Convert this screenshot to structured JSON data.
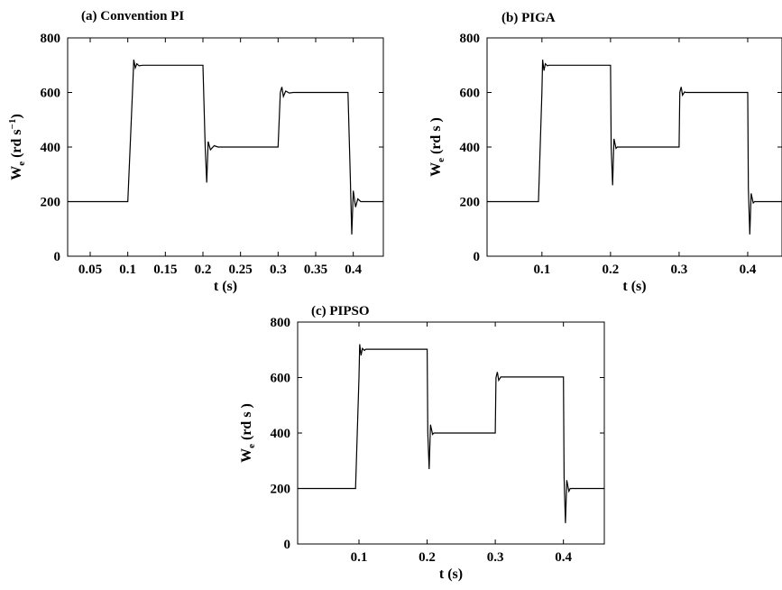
{
  "chart_data": [
    {
      "type": "line",
      "title": "(a) Convention PI",
      "xlabel": "t (s)",
      "ylabel": "W",
      "ylabel_sub": "e",
      "ylabel_unit": "(rd s",
      "ylabel_sup": "−1",
      "ylabel_close": ")",
      "xlim": [
        0.02,
        0.44
      ],
      "ylim": [
        0,
        800
      ],
      "xticks": [
        0.05,
        0.1,
        0.15,
        0.2,
        0.25,
        0.3,
        0.35,
        0.4
      ],
      "xtick_labels": [
        "0.05",
        "0.1",
        "0.15",
        "0.2",
        "0.25",
        "0.3",
        "0.35",
        "0.4"
      ],
      "yticks": [
        0,
        200,
        400,
        600,
        800
      ],
      "ytick_labels": [
        "0",
        "200",
        "400",
        "600",
        "800"
      ],
      "grid": false,
      "series": [
        {
          "x": [
            0.02,
            0.1,
            0.107,
            0.108,
            0.11,
            0.112,
            0.115,
            0.12,
            0.2,
            0.203,
            0.205,
            0.207,
            0.21,
            0.215,
            0.22,
            0.3,
            0.303,
            0.305,
            0.307,
            0.31,
            0.315,
            0.32,
            0.393,
            0.396,
            0.398,
            0.4,
            0.403,
            0.406,
            0.41,
            0.44
          ],
          "y": [
            200,
            200,
            650,
            720,
            690,
            705,
            698,
            700,
            700,
            400,
            270,
            420,
            390,
            405,
            400,
            400,
            600,
            620,
            585,
            605,
            598,
            600,
            600,
            300,
            80,
            240,
            180,
            210,
            200,
            200
          ]
        }
      ]
    },
    {
      "type": "line",
      "title": "(b) PIGA",
      "xlabel": "t (s)",
      "ylabel": "W",
      "ylabel_sub": "e",
      "ylabel_unit": "(rd s",
      "ylabel_sup": "",
      "ylabel_close": ")",
      "xlim": [
        0.02,
        0.45
      ],
      "ylim": [
        0,
        800
      ],
      "xticks": [
        0.1,
        0.2,
        0.3,
        0.4
      ],
      "xtick_labels": [
        "0.1",
        "0.2",
        "0.3",
        "0.4"
      ],
      "yticks": [
        0,
        200,
        400,
        600,
        800
      ],
      "ytick_labels": [
        "0",
        "200",
        "400",
        "600",
        "800"
      ],
      "grid": false,
      "series": [
        {
          "x": [
            0.02,
            0.095,
            0.1,
            0.101,
            0.103,
            0.105,
            0.108,
            0.11,
            0.2,
            0.201,
            0.203,
            0.205,
            0.208,
            0.21,
            0.3,
            0.301,
            0.303,
            0.305,
            0.308,
            0.31,
            0.4,
            0.401,
            0.403,
            0.405,
            0.408,
            0.41,
            0.45
          ],
          "y": [
            200,
            200,
            600,
            720,
            680,
            705,
            698,
            700,
            700,
            400,
            260,
            430,
            395,
            400,
            400,
            600,
            620,
            590,
            602,
            600,
            600,
            250,
            80,
            230,
            195,
            200,
            200
          ]
        }
      ]
    },
    {
      "type": "line",
      "title": "(c) PIPSO",
      "xlabel": "t (s)",
      "ylabel": "W",
      "ylabel_sub": "e",
      "ylabel_unit": "(rd s",
      "ylabel_sup": "",
      "ylabel_close": ")",
      "xlim": [
        0.01,
        0.46
      ],
      "ylim": [
        0,
        800
      ],
      "xticks": [
        0.1,
        0.2,
        0.3,
        0.4
      ],
      "xtick_labels": [
        "0.1",
        "0.2",
        "0.3",
        "0.4"
      ],
      "yticks": [
        0,
        200,
        400,
        600,
        800
      ],
      "ytick_labels": [
        "0",
        "200",
        "400",
        "600",
        "800"
      ],
      "grid": false,
      "series": [
        {
          "x": [
            0.01,
            0.095,
            0.1,
            0.101,
            0.103,
            0.105,
            0.108,
            0.11,
            0.2,
            0.201,
            0.203,
            0.205,
            0.208,
            0.21,
            0.3,
            0.301,
            0.303,
            0.305,
            0.308,
            0.31,
            0.4,
            0.401,
            0.403,
            0.405,
            0.408,
            0.41,
            0.46
          ],
          "y": [
            200,
            200,
            600,
            720,
            680,
            705,
            698,
            702,
            702,
            400,
            270,
            430,
            395,
            400,
            400,
            600,
            620,
            590,
            602,
            602,
            602,
            240,
            75,
            230,
            190,
            200,
            200
          ]
        }
      ]
    }
  ]
}
